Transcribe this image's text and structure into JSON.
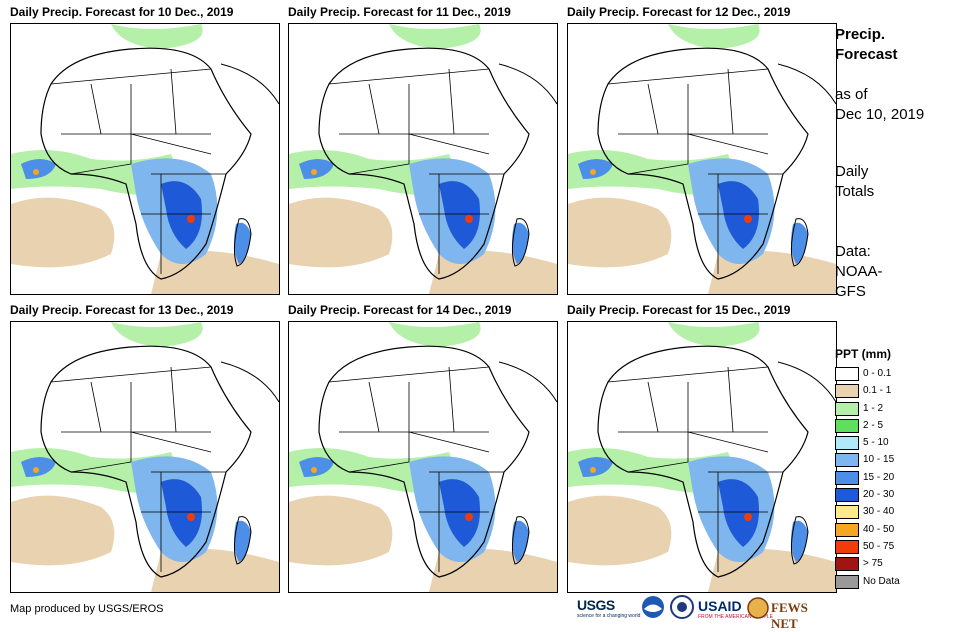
{
  "panels": [
    {
      "title": "Daily Precip. Forecast for 10 Dec., 2019"
    },
    {
      "title": "Daily Precip. Forecast for 11 Dec., 2019"
    },
    {
      "title": "Daily Precip. Forecast for 12 Dec., 2019"
    },
    {
      "title": "Daily Precip. Forecast for 13 Dec., 2019"
    },
    {
      "title": "Daily Precip. Forecast for 14 Dec., 2019"
    },
    {
      "title": "Daily Precip. Forecast for 15 Dec., 2019"
    }
  ],
  "sidebar": {
    "title_line1": "Precip.",
    "title_line2": "Forecast",
    "asof_line1": "as of",
    "asof_line2": "Dec 10, 2019",
    "daily_line1": "Daily",
    "daily_line2": "Totals",
    "data_line1": "Data:",
    "data_line2": "NOAA-",
    "data_line3": "GFS"
  },
  "legend": {
    "title": "PPT (mm)",
    "items": [
      {
        "label": "0 - 0.1",
        "color": "#ffffff"
      },
      {
        "label": "0.1 - 1",
        "color": "#e8d2b0"
      },
      {
        "label": "1 - 2",
        "color": "#b5f0a8"
      },
      {
        "label": "2 - 5",
        "color": "#5ee05e"
      },
      {
        "label": "5 - 10",
        "color": "#b0eaf8"
      },
      {
        "label": "10 - 15",
        "color": "#7fb6ee"
      },
      {
        "label": "15 - 20",
        "color": "#4d8ee6"
      },
      {
        "label": "20 - 30",
        "color": "#1e5ad8"
      },
      {
        "label": "30 - 40",
        "color": "#ffe98a"
      },
      {
        "label": "40 - 50",
        "color": "#f5a623"
      },
      {
        "label": "50 - 75",
        "color": "#f03c0a"
      },
      {
        "label": "> 75",
        "color": "#a01414"
      },
      {
        "label": "No Data",
        "color": "#999999"
      }
    ]
  },
  "footer": {
    "credit": "Map produced by USGS/EROS",
    "logos": {
      "usgs": "USGS",
      "usgs_tag": "science for a changing world",
      "usaid": "USAID",
      "usaid_tag": "FROM THE AMERICAN PEOPLE",
      "fews": "FEWS NET"
    }
  }
}
